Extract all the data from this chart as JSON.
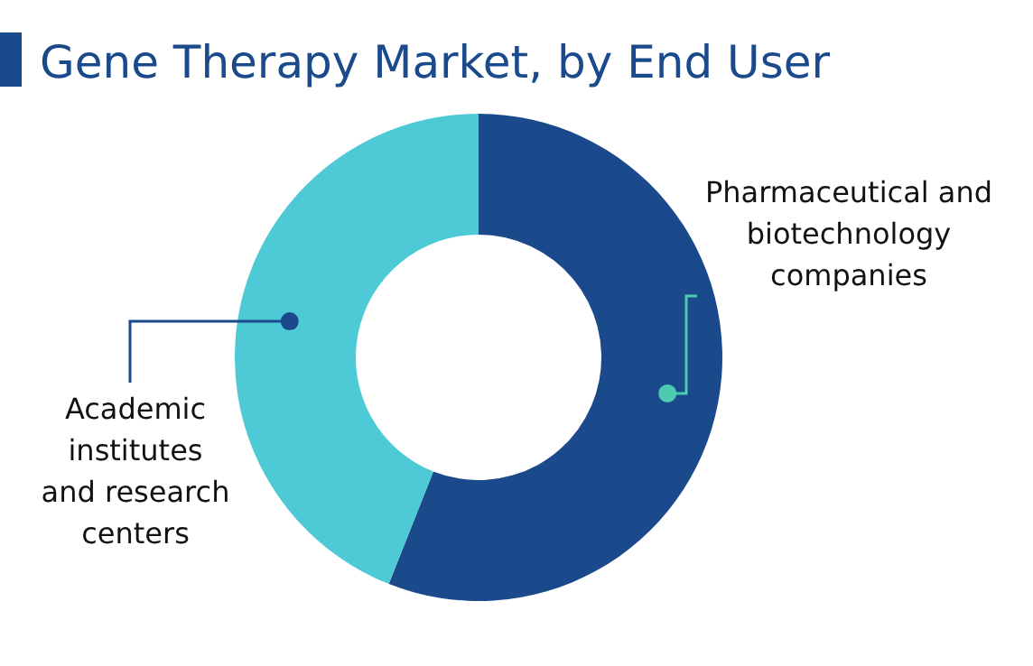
{
  "chart_data": {
    "type": "donut",
    "title": "Gene Therapy Market, by End User",
    "categories": [
      "Pharmaceutical and biotechnology companies",
      "Academic institutes and research centers"
    ],
    "values": [
      56,
      44
    ],
    "colors": [
      "#1b4a8c",
      "#4ec9d6"
    ]
  }
}
